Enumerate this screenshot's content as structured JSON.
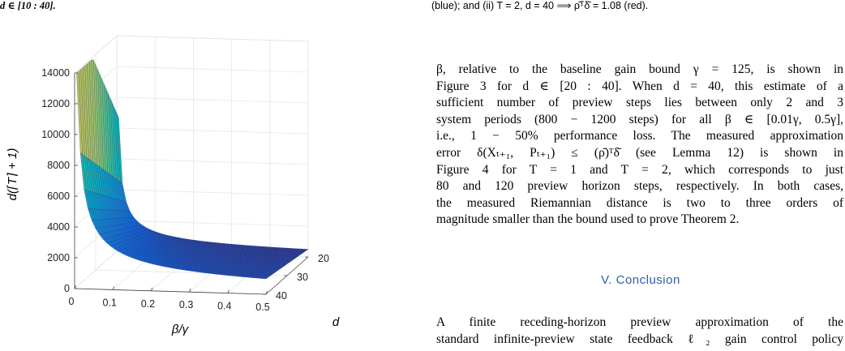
{
  "captions": {
    "left_line": "d ∈ [10 : 40].",
    "right_line": "(blue); and (ii) T = 2, d = 40 ⟹ ρ̄ᵀδ̄ = 1.08 (red)."
  },
  "chart_data": {
    "type": "surface",
    "xlabel": "β/γ",
    "ylabel": "d",
    "zlabel": "d(⌈T⌉ + 1)",
    "x_ticks": [
      "0",
      "0.1",
      "0.2",
      "0.3",
      "0.4",
      "0.5"
    ],
    "y_ticks": [
      "20",
      "30",
      "40"
    ],
    "z_ticks": [
      "0",
      "2000",
      "4000",
      "6000",
      "8000",
      "10000",
      "12000",
      "14000"
    ],
    "xlim": [
      0,
      0.5
    ],
    "ylim": [
      20,
      40
    ],
    "zlim": [
      0,
      14000
    ],
    "colormap": "parula",
    "corner_values": [
      {
        "x": 0.005,
        "d": 40,
        "z": 14000
      },
      {
        "x": 0.5,
        "d": 40,
        "z": 1100
      },
      {
        "x": 0.005,
        "d": 20,
        "z": 9000
      },
      {
        "x": 0.5,
        "d": 20,
        "z": 600
      }
    ]
  },
  "body": {
    "paragraph1_lines": [
      "β, relative to the baseline gain bound γ = 125, is shown in",
      "Figure 3 for d ∈ [20 : 40]. When d = 40, this estimate of a",
      "sufficient number of preview steps lies between only 2 and 3",
      "system periods (800 − 1200 steps) for all β ∈ [0.01γ, 0.5γ],",
      "i.e., 1 − 50% performance loss. The measured approximation",
      "error δ(Xₜ₊₁, Pₜ₊₁) ≤ (ρ̄)ᵀδ̄ (see Lemma 12) is shown in",
      "Figure 4 for T = 1 and T = 2, which corresponds to just",
      "80 and 120 preview horizon steps, respectively. In both cases,",
      "the measured Riemannian distance is two to three orders of",
      "magnitude smaller than the bound used to prove Theorem 2."
    ],
    "section_title": "V. Conclusion",
    "paragraph2_lines": [
      "A finite receding-horizon preview approximation of the",
      "standard infinite-preview state feedback ℓ₂ gain control policy"
    ]
  }
}
